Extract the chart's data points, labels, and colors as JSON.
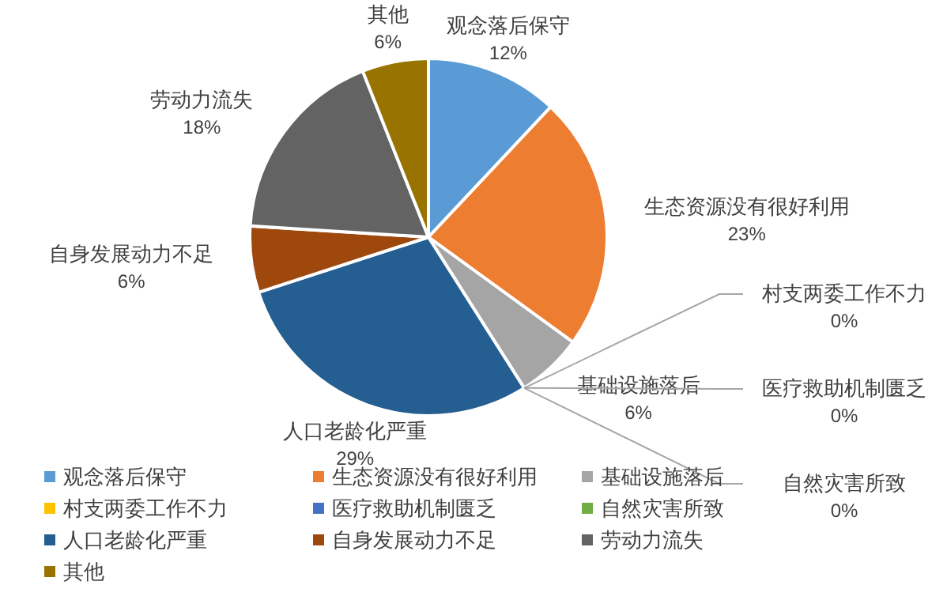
{
  "chart_data": {
    "type": "pie",
    "categories": [
      "观念落后保守",
      "生态资源没有很好利用",
      "基础设施落后",
      "村支两委工作不力",
      "医疗救助机制匮乏",
      "自然灾害所致",
      "人口老龄化严重",
      "自身发展动力不足",
      "劳动力流失",
      "其他"
    ],
    "values": [
      12,
      23,
      6,
      0,
      0,
      0,
      29,
      6,
      18,
      6
    ],
    "value_labels": [
      "12%",
      "23%",
      "6%",
      "0%",
      "0%",
      "0%",
      "29%",
      "6%",
      "18%",
      "6%"
    ],
    "colors": [
      "#5b9bd5",
      "#ed7d31",
      "#a5a5a5",
      "#ffc000",
      "#4472c4",
      "#70ad47",
      "#255e91",
      "#9e480e",
      "#636363",
      "#997300"
    ],
    "legend": "bottom"
  }
}
